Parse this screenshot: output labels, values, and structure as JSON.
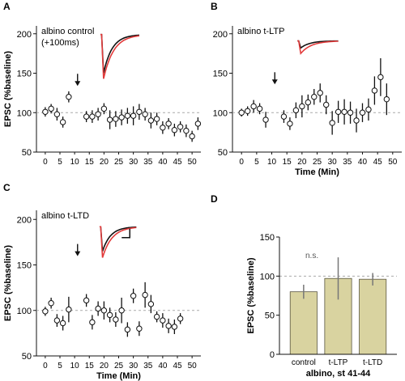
{
  "chart_data": [
    {
      "panel": "A",
      "type": "scatter",
      "annotation": "albino control\n(+100ms)",
      "ylabel": "EPSC (%baseline)",
      "xlabel": "",
      "ylim": [
        50,
        210
      ],
      "yticks": [
        50,
        100,
        150,
        200
      ],
      "xlim": [
        -3,
        53
      ],
      "xticks": [
        0,
        5,
        10,
        15,
        20,
        25,
        30,
        35,
        40,
        45,
        50
      ],
      "xtick_labels": [
        "0",
        "5",
        "10",
        "15",
        "20",
        "25",
        "30",
        "35",
        "40",
        "45",
        "50"
      ],
      "baseline": 100,
      "arrow_x": 11,
      "arrow_y": 140,
      "points": [
        {
          "x": 0,
          "y": 101,
          "err": 6
        },
        {
          "x": 2,
          "y": 105,
          "err": 6
        },
        {
          "x": 4,
          "y": 98,
          "err": 8
        },
        {
          "x": 6,
          "y": 88,
          "err": 7
        },
        {
          "x": 8,
          "y": 120,
          "err": 7
        },
        {
          "x": 14,
          "y": 95,
          "err": 7
        },
        {
          "x": 16,
          "y": 95,
          "err": 8
        },
        {
          "x": 18,
          "y": 98,
          "err": 8
        },
        {
          "x": 20,
          "y": 105,
          "err": 7
        },
        {
          "x": 22,
          "y": 91,
          "err": 12
        },
        {
          "x": 24,
          "y": 92,
          "err": 10
        },
        {
          "x": 26,
          "y": 94,
          "err": 10
        },
        {
          "x": 28,
          "y": 96,
          "err": 10
        },
        {
          "x": 30,
          "y": 96,
          "err": 12
        },
        {
          "x": 32,
          "y": 101,
          "err": 10
        },
        {
          "x": 34,
          "y": 98,
          "err": 8
        },
        {
          "x": 36,
          "y": 90,
          "err": 10
        },
        {
          "x": 38,
          "y": 92,
          "err": 8
        },
        {
          "x": 40,
          "y": 81,
          "err": 8
        },
        {
          "x": 42,
          "y": 86,
          "err": 7
        },
        {
          "x": 44,
          "y": 78,
          "err": 8
        },
        {
          "x": 46,
          "y": 82,
          "err": 7
        },
        {
          "x": 48,
          "y": 77,
          "err": 8
        },
        {
          "x": 50,
          "y": 70,
          "err": 7
        },
        {
          "x": 52,
          "y": 86,
          "err": 8
        }
      ],
      "trace": {
        "x0": 18.8,
        "x1": 32,
        "ybase": 199,
        "black_min": 150,
        "red_min": 143
      }
    },
    {
      "panel": "B",
      "type": "scatter",
      "annotation": "albino t-LTP",
      "ylabel": "",
      "xlabel": "Time (Min)",
      "ylim": [
        50,
        210
      ],
      "yticks": [
        50,
        100,
        150,
        200
      ],
      "xlim": [
        -3,
        53
      ],
      "xticks": [
        0,
        5,
        10,
        15,
        20,
        25,
        30,
        35,
        40,
        45,
        50
      ],
      "xtick_labels": [
        "0",
        "5",
        "10",
        "15",
        "20",
        "25",
        "30",
        "35",
        "40",
        "45",
        "50"
      ],
      "baseline": 100,
      "arrow_x": 11,
      "arrow_y": 142,
      "points": [
        {
          "x": 0,
          "y": 100,
          "err": 5
        },
        {
          "x": 2,
          "y": 102,
          "err": 6
        },
        {
          "x": 4,
          "y": 108,
          "err": 8
        },
        {
          "x": 6,
          "y": 105,
          "err": 7
        },
        {
          "x": 8,
          "y": 91,
          "err": 10
        },
        {
          "x": 14,
          "y": 95,
          "err": 8
        },
        {
          "x": 16,
          "y": 86,
          "err": 8
        },
        {
          "x": 18,
          "y": 103,
          "err": 10
        },
        {
          "x": 20,
          "y": 108,
          "err": 14
        },
        {
          "x": 22,
          "y": 113,
          "err": 10
        },
        {
          "x": 24,
          "y": 120,
          "err": 10
        },
        {
          "x": 26,
          "y": 125,
          "err": 12
        },
        {
          "x": 28,
          "y": 110,
          "err": 12
        },
        {
          "x": 30,
          "y": 87,
          "err": 15
        },
        {
          "x": 32,
          "y": 101,
          "err": 14
        },
        {
          "x": 34,
          "y": 101,
          "err": 16
        },
        {
          "x": 36,
          "y": 100,
          "err": 14
        },
        {
          "x": 38,
          "y": 90,
          "err": 15
        },
        {
          "x": 40,
          "y": 100,
          "err": 12
        },
        {
          "x": 42,
          "y": 104,
          "err": 14
        },
        {
          "x": 44,
          "y": 128,
          "err": 18
        },
        {
          "x": 46,
          "y": 145,
          "err": 24
        },
        {
          "x": 48,
          "y": 117,
          "err": 20
        }
      ],
      "trace": {
        "x0": 18.5,
        "x1": 32,
        "ybase": 191,
        "black_min": 182,
        "red_min": 175
      }
    },
    {
      "panel": "C",
      "type": "scatter",
      "annotation": "albino t-LTD",
      "ylabel": "EPSC (%baseline)",
      "xlabel": "Time (Min)",
      "ylim": [
        50,
        210
      ],
      "yticks": [
        50,
        100,
        150,
        200
      ],
      "xlim": [
        -3,
        53
      ],
      "xticks": [
        0,
        5,
        10,
        15,
        20,
        25,
        30,
        35,
        40,
        45,
        50
      ],
      "xtick_labels": [
        "0",
        "5",
        "10",
        "15",
        "20",
        "25",
        "30",
        "35",
        "40",
        "45",
        "50"
      ],
      "baseline": 100,
      "arrow_x": 11,
      "arrow_y": 165,
      "points": [
        {
          "x": 0,
          "y": 99,
          "err": 5
        },
        {
          "x": 2,
          "y": 108,
          "err": 6
        },
        {
          "x": 4,
          "y": 89,
          "err": 7
        },
        {
          "x": 6,
          "y": 86,
          "err": 8
        },
        {
          "x": 8,
          "y": 101,
          "err": 14
        },
        {
          "x": 14,
          "y": 111,
          "err": 7
        },
        {
          "x": 16,
          "y": 87,
          "err": 8
        },
        {
          "x": 18,
          "y": 102,
          "err": 8
        },
        {
          "x": 20,
          "y": 100,
          "err": 10
        },
        {
          "x": 22,
          "y": 95,
          "err": 8
        },
        {
          "x": 24,
          "y": 90,
          "err": 8
        },
        {
          "x": 26,
          "y": 100,
          "err": 14
        },
        {
          "x": 28,
          "y": 79,
          "err": 8
        },
        {
          "x": 30,
          "y": 116,
          "err": 8
        },
        {
          "x": 32,
          "y": 80,
          "err": 8
        },
        {
          "x": 34,
          "y": 117,
          "err": 14
        },
        {
          "x": 36,
          "y": 107,
          "err": 10
        },
        {
          "x": 38,
          "y": 93,
          "err": 6
        },
        {
          "x": 40,
          "y": 89,
          "err": 8
        },
        {
          "x": 42,
          "y": 83,
          "err": 8
        },
        {
          "x": 44,
          "y": 82,
          "err": 8
        },
        {
          "x": 46,
          "y": 91,
          "err": 6
        }
      ],
      "trace": {
        "x0": 18.5,
        "x1": 31,
        "ybase": 192,
        "black_min": 165,
        "red_min": 158
      },
      "scalebar": true
    },
    {
      "panel": "D",
      "type": "bar",
      "ylabel": "EPSC (%baseline)",
      "xlabel": "albino, st 41-44",
      "categories": [
        "control",
        "t-LTP",
        "t-LTD"
      ],
      "values": [
        80,
        97,
        96
      ],
      "errors": [
        9,
        27,
        8
      ],
      "ylim": [
        0,
        150
      ],
      "yticks": [
        0,
        50,
        100,
        150
      ],
      "baseline": 100,
      "annotation": "n.s.",
      "bar_color": "#d9d3a0"
    }
  ],
  "colors": {
    "axis": "#111111",
    "baseline": "#aaaaaa",
    "trace_black": "#111111",
    "trace_red": "#e23b3b",
    "errbar": "#777777"
  }
}
